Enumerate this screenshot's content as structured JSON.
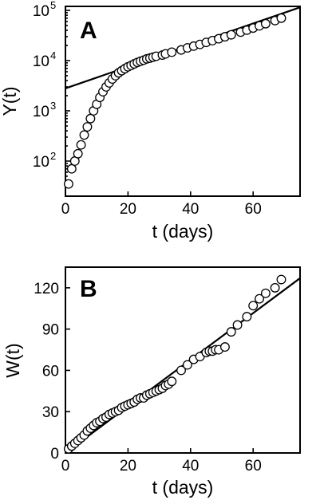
{
  "chart_data": [
    {
      "type": "scatter",
      "panel_label": "A",
      "xlabel": "t (days)",
      "ylabel": "Y(t)",
      "xlim": [
        0,
        75
      ],
      "ylim": [
        20,
        120000
      ],
      "y_scale": "log",
      "x_ticks": [
        0,
        20,
        40,
        60
      ],
      "y_ticks": [
        {
          "value": 100,
          "base": "10",
          "exp": "2"
        },
        {
          "value": 1000,
          "base": "10",
          "exp": "3"
        },
        {
          "value": 10000,
          "base": "10",
          "exp": "4"
        },
        {
          "value": 100000,
          "base": "10",
          "exp": "5"
        }
      ],
      "grid": false,
      "series": [
        {
          "kind": "markers",
          "x": [
            1,
            2,
            3,
            4,
            5,
            6,
            7,
            8,
            9,
            10,
            11,
            12,
            13,
            14,
            15,
            16,
            17,
            18,
            19,
            20,
            21,
            22,
            23,
            24,
            25,
            26,
            27,
            28,
            29,
            31,
            32,
            34,
            37,
            39,
            41,
            43,
            45,
            47,
            49,
            51,
            53,
            56,
            58,
            60,
            62,
            64,
            67,
            69
          ],
          "y": [
            35,
            70,
            100,
            140,
            210,
            330,
            480,
            700,
            1000,
            1350,
            1850,
            2400,
            3000,
            3600,
            4300,
            5000,
            5700,
            6300,
            6900,
            7500,
            8000,
            8600,
            9200,
            9700,
            10200,
            10800,
            11200,
            11700,
            12200,
            12900,
            13600,
            14700,
            16300,
            17900,
            19400,
            21000,
            23000,
            25000,
            27200,
            29800,
            32600,
            36800,
            40300,
            44500,
            49100,
            54200,
            62500,
            70000
          ]
        },
        {
          "kind": "line",
          "x": [
            0,
            75
          ],
          "y": [
            2800,
            115000
          ]
        }
      ]
    },
    {
      "type": "scatter",
      "panel_label": "B",
      "xlabel": "t (days)",
      "ylabel": "W(t)",
      "xlim": [
        0,
        75
      ],
      "ylim": [
        0,
        135
      ],
      "y_scale": "linear",
      "x_ticks": [
        0,
        20,
        40,
        60
      ],
      "y_ticks": [
        0,
        30,
        60,
        90,
        120
      ],
      "grid": false,
      "series": [
        {
          "kind": "markers",
          "x": [
            1,
            2,
            3,
            4,
            5,
            6,
            7,
            8,
            9,
            10,
            11,
            12,
            13,
            14,
            15,
            16,
            17,
            18,
            19,
            20,
            21,
            22,
            23,
            24,
            25,
            26,
            27,
            28,
            29,
            30,
            31,
            32,
            33,
            34,
            37,
            39,
            41,
            43,
            45,
            46,
            47,
            48,
            49,
            51,
            53,
            55,
            58,
            60,
            62,
            64,
            67,
            69
          ],
          "y": [
            3,
            5,
            7,
            9,
            11,
            13,
            16,
            18,
            20,
            22,
            23,
            25,
            26,
            28,
            29,
            30,
            31,
            33,
            34,
            35,
            36,
            37,
            39,
            40,
            40,
            42,
            43,
            44,
            45,
            46,
            47,
            49,
            50,
            52,
            60,
            64,
            68,
            70,
            73,
            74,
            74,
            75,
            75,
            77,
            88,
            93,
            99,
            107,
            112,
            116,
            120,
            126
          ]
        },
        {
          "kind": "line",
          "x": [
            0,
            75
          ],
          "y": [
            0,
            127
          ]
        }
      ]
    }
  ]
}
